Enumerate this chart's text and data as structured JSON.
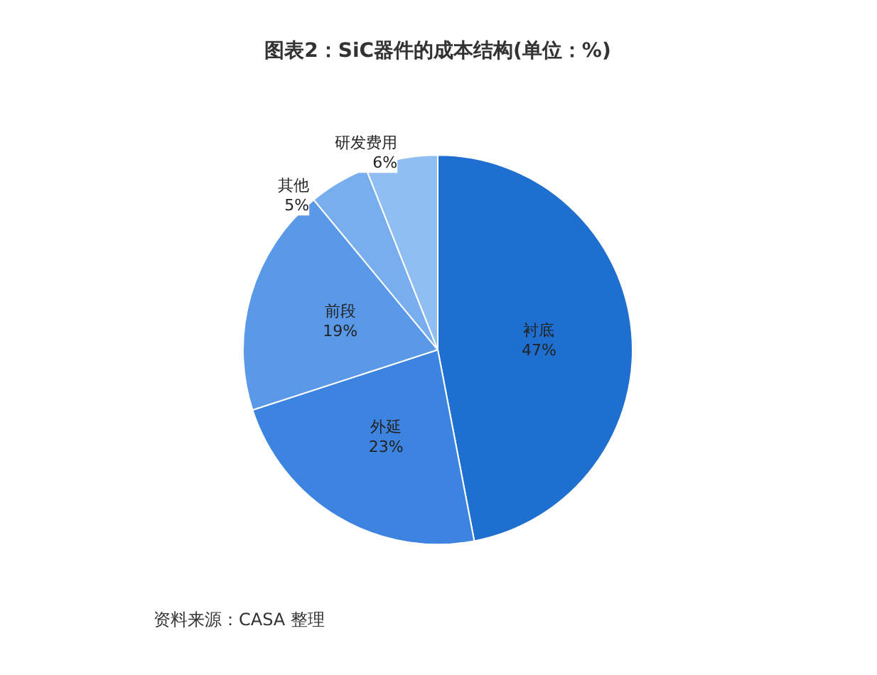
{
  "chart_data": {
    "type": "pie",
    "title": "图表2：SiC器件的成本结构(单位：%)",
    "categories": [
      "衬底",
      "外延",
      "前段",
      "其他",
      "研发费用"
    ],
    "values": [
      47,
      23,
      19,
      5,
      6
    ],
    "value_labels": [
      "47%",
      "23%",
      "19%",
      "5%",
      "6%"
    ],
    "colors": [
      "#1f6fd1",
      "#3d84e0",
      "#5a98e8",
      "#78aeee",
      "#90bdf2"
    ],
    "legend": false,
    "annotations": [
      "资料来源：CASA 整理"
    ]
  }
}
